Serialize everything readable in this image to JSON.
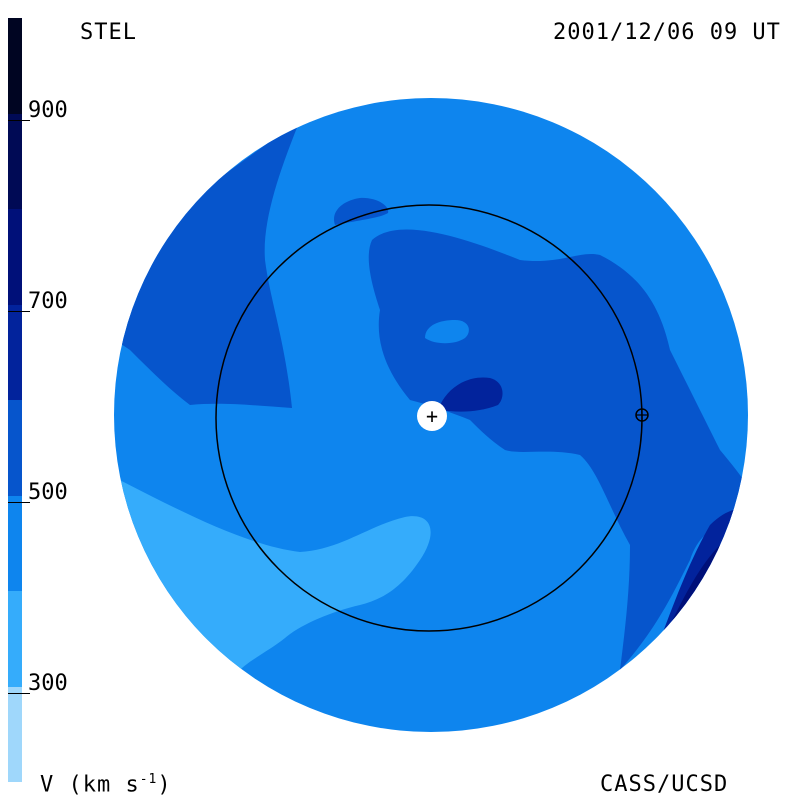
{
  "header": {
    "institution": "STEL",
    "timestamp": "2001/12/06 09 UT"
  },
  "footer": {
    "quantity_label": "V (km s",
    "quantity_exp": "-1",
    "quantity_close": ")",
    "credit": "CASS/UCSD"
  },
  "colorbar": {
    "ticks": [
      {
        "label": "900",
        "value": 900
      },
      {
        "label": "700",
        "value": 700
      },
      {
        "label": "500",
        "value": 500
      },
      {
        "label": "300",
        "value": 300
      }
    ],
    "range": [
      200,
      1000
    ],
    "levels": [
      {
        "min": 200,
        "max": 300,
        "color": "#9fd7fb"
      },
      {
        "min": 300,
        "max": 400,
        "color": "#35acfb"
      },
      {
        "min": 400,
        "max": 500,
        "color": "#0e85ee"
      },
      {
        "min": 500,
        "max": 600,
        "color": "#0655cc"
      },
      {
        "min": 600,
        "max": 700,
        "color": "#02239c"
      },
      {
        "min": 700,
        "max": 800,
        "color": "#001079"
      },
      {
        "min": 800,
        "max": 900,
        "color": "#000a55"
      },
      {
        "min": 900,
        "max": 1000,
        "color": "#000522"
      }
    ]
  },
  "markers": {
    "sun": "+",
    "earth": "earth-symbol"
  }
}
